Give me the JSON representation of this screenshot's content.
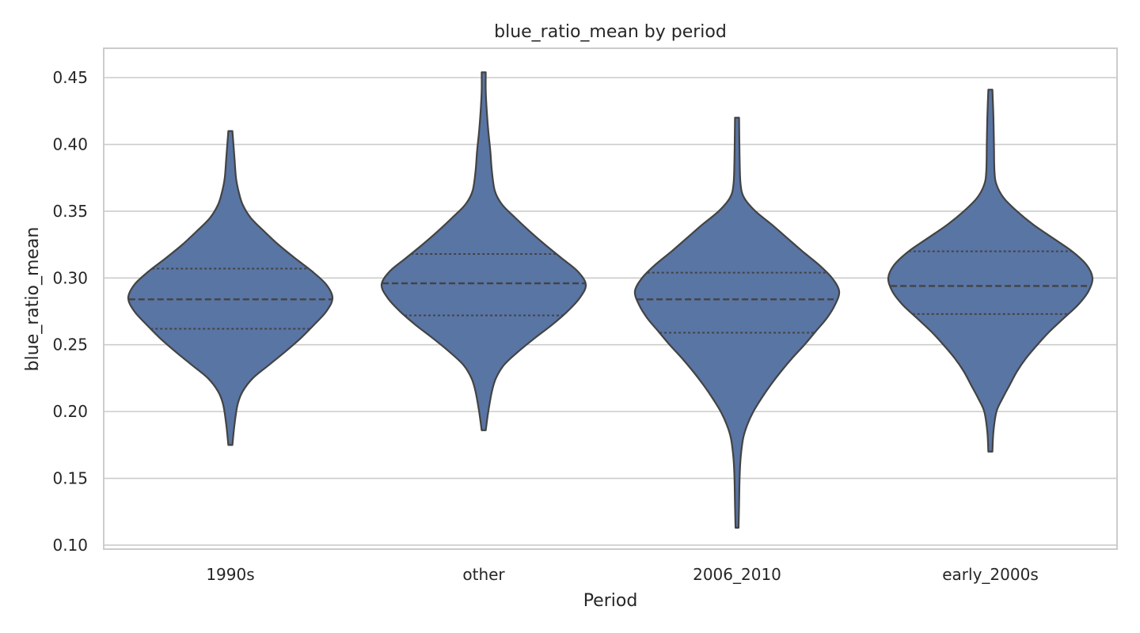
{
  "chart_data": {
    "type": "violin",
    "title": "blue_ratio_mean by period",
    "xlabel": "Period",
    "ylabel": "blue_ratio_mean",
    "categories": [
      "1990s",
      "other",
      "2006_2010",
      "early_2000s"
    ],
    "ylim": [
      0.097,
      0.472
    ],
    "yticks": [
      0.1,
      0.15,
      0.2,
      0.25,
      0.3,
      0.35,
      0.4,
      0.45
    ],
    "ytick_labels": [
      "0.10",
      "0.15",
      "0.20",
      "0.25",
      "0.30",
      "0.35",
      "0.40",
      "0.45"
    ],
    "grid": true,
    "inner": "quartile",
    "fill_color": "#5975a4",
    "line_color": "#434343",
    "violins": [
      {
        "category": "1990s",
        "min": 0.175,
        "q1": 0.262,
        "median": 0.284,
        "q3": 0.307,
        "max": 0.41,
        "profile": [
          [
            0.175,
            0.02
          ],
          [
            0.19,
            0.04
          ],
          [
            0.205,
            0.07
          ],
          [
            0.215,
            0.12
          ],
          [
            0.225,
            0.22
          ],
          [
            0.235,
            0.38
          ],
          [
            0.245,
            0.54
          ],
          [
            0.255,
            0.69
          ],
          [
            0.265,
            0.82
          ],
          [
            0.275,
            0.94
          ],
          [
            0.285,
            1.0
          ],
          [
            0.295,
            0.94
          ],
          [
            0.305,
            0.8
          ],
          [
            0.315,
            0.63
          ],
          [
            0.325,
            0.47
          ],
          [
            0.335,
            0.33
          ],
          [
            0.345,
            0.2
          ],
          [
            0.355,
            0.12
          ],
          [
            0.365,
            0.08
          ],
          [
            0.375,
            0.055
          ],
          [
            0.39,
            0.04
          ],
          [
            0.41,
            0.02
          ]
        ]
      },
      {
        "category": "other",
        "min": 0.186,
        "q1": 0.272,
        "median": 0.296,
        "q3": 0.318,
        "max": 0.454,
        "profile": [
          [
            0.186,
            0.02
          ],
          [
            0.2,
            0.045
          ],
          [
            0.215,
            0.08
          ],
          [
            0.225,
            0.12
          ],
          [
            0.235,
            0.2
          ],
          [
            0.245,
            0.34
          ],
          [
            0.255,
            0.5
          ],
          [
            0.265,
            0.67
          ],
          [
            0.275,
            0.82
          ],
          [
            0.285,
            0.94
          ],
          [
            0.295,
            1.0
          ],
          [
            0.305,
            0.92
          ],
          [
            0.315,
            0.76
          ],
          [
            0.325,
            0.6
          ],
          [
            0.335,
            0.45
          ],
          [
            0.345,
            0.31
          ],
          [
            0.355,
            0.18
          ],
          [
            0.365,
            0.11
          ],
          [
            0.38,
            0.08
          ],
          [
            0.395,
            0.065
          ],
          [
            0.41,
            0.045
          ],
          [
            0.425,
            0.03
          ],
          [
            0.44,
            0.02
          ],
          [
            0.454,
            0.02
          ]
        ]
      },
      {
        "category": "2006_2010",
        "min": 0.113,
        "q1": 0.259,
        "median": 0.284,
        "q3": 0.304,
        "max": 0.42,
        "profile": [
          [
            0.113,
            0.015
          ],
          [
            0.13,
            0.02
          ],
          [
            0.15,
            0.025
          ],
          [
            0.165,
            0.035
          ],
          [
            0.18,
            0.06
          ],
          [
            0.19,
            0.1
          ],
          [
            0.2,
            0.16
          ],
          [
            0.21,
            0.24
          ],
          [
            0.22,
            0.33
          ],
          [
            0.23,
            0.43
          ],
          [
            0.24,
            0.54
          ],
          [
            0.25,
            0.66
          ],
          [
            0.26,
            0.77
          ],
          [
            0.27,
            0.88
          ],
          [
            0.28,
            0.96
          ],
          [
            0.29,
            1.0
          ],
          [
            0.3,
            0.93
          ],
          [
            0.31,
            0.8
          ],
          [
            0.32,
            0.64
          ],
          [
            0.33,
            0.49
          ],
          [
            0.34,
            0.34
          ],
          [
            0.35,
            0.18
          ],
          [
            0.36,
            0.07
          ],
          [
            0.37,
            0.035
          ],
          [
            0.39,
            0.025
          ],
          [
            0.42,
            0.02
          ]
        ]
      },
      {
        "category": "early_2000s",
        "min": 0.17,
        "q1": 0.273,
        "median": 0.294,
        "q3": 0.32,
        "max": 0.441,
        "profile": [
          [
            0.17,
            0.02
          ],
          [
            0.185,
            0.03
          ],
          [
            0.2,
            0.06
          ],
          [
            0.21,
            0.12
          ],
          [
            0.22,
            0.19
          ],
          [
            0.23,
            0.26
          ],
          [
            0.24,
            0.35
          ],
          [
            0.25,
            0.46
          ],
          [
            0.26,
            0.58
          ],
          [
            0.27,
            0.72
          ],
          [
            0.28,
            0.86
          ],
          [
            0.29,
            0.96
          ],
          [
            0.3,
            1.0
          ],
          [
            0.31,
            0.94
          ],
          [
            0.32,
            0.8
          ],
          [
            0.33,
            0.61
          ],
          [
            0.34,
            0.42
          ],
          [
            0.35,
            0.26
          ],
          [
            0.36,
            0.13
          ],
          [
            0.37,
            0.06
          ],
          [
            0.38,
            0.04
          ],
          [
            0.4,
            0.035
          ],
          [
            0.42,
            0.03
          ],
          [
            0.441,
            0.02
          ]
        ]
      }
    ]
  }
}
